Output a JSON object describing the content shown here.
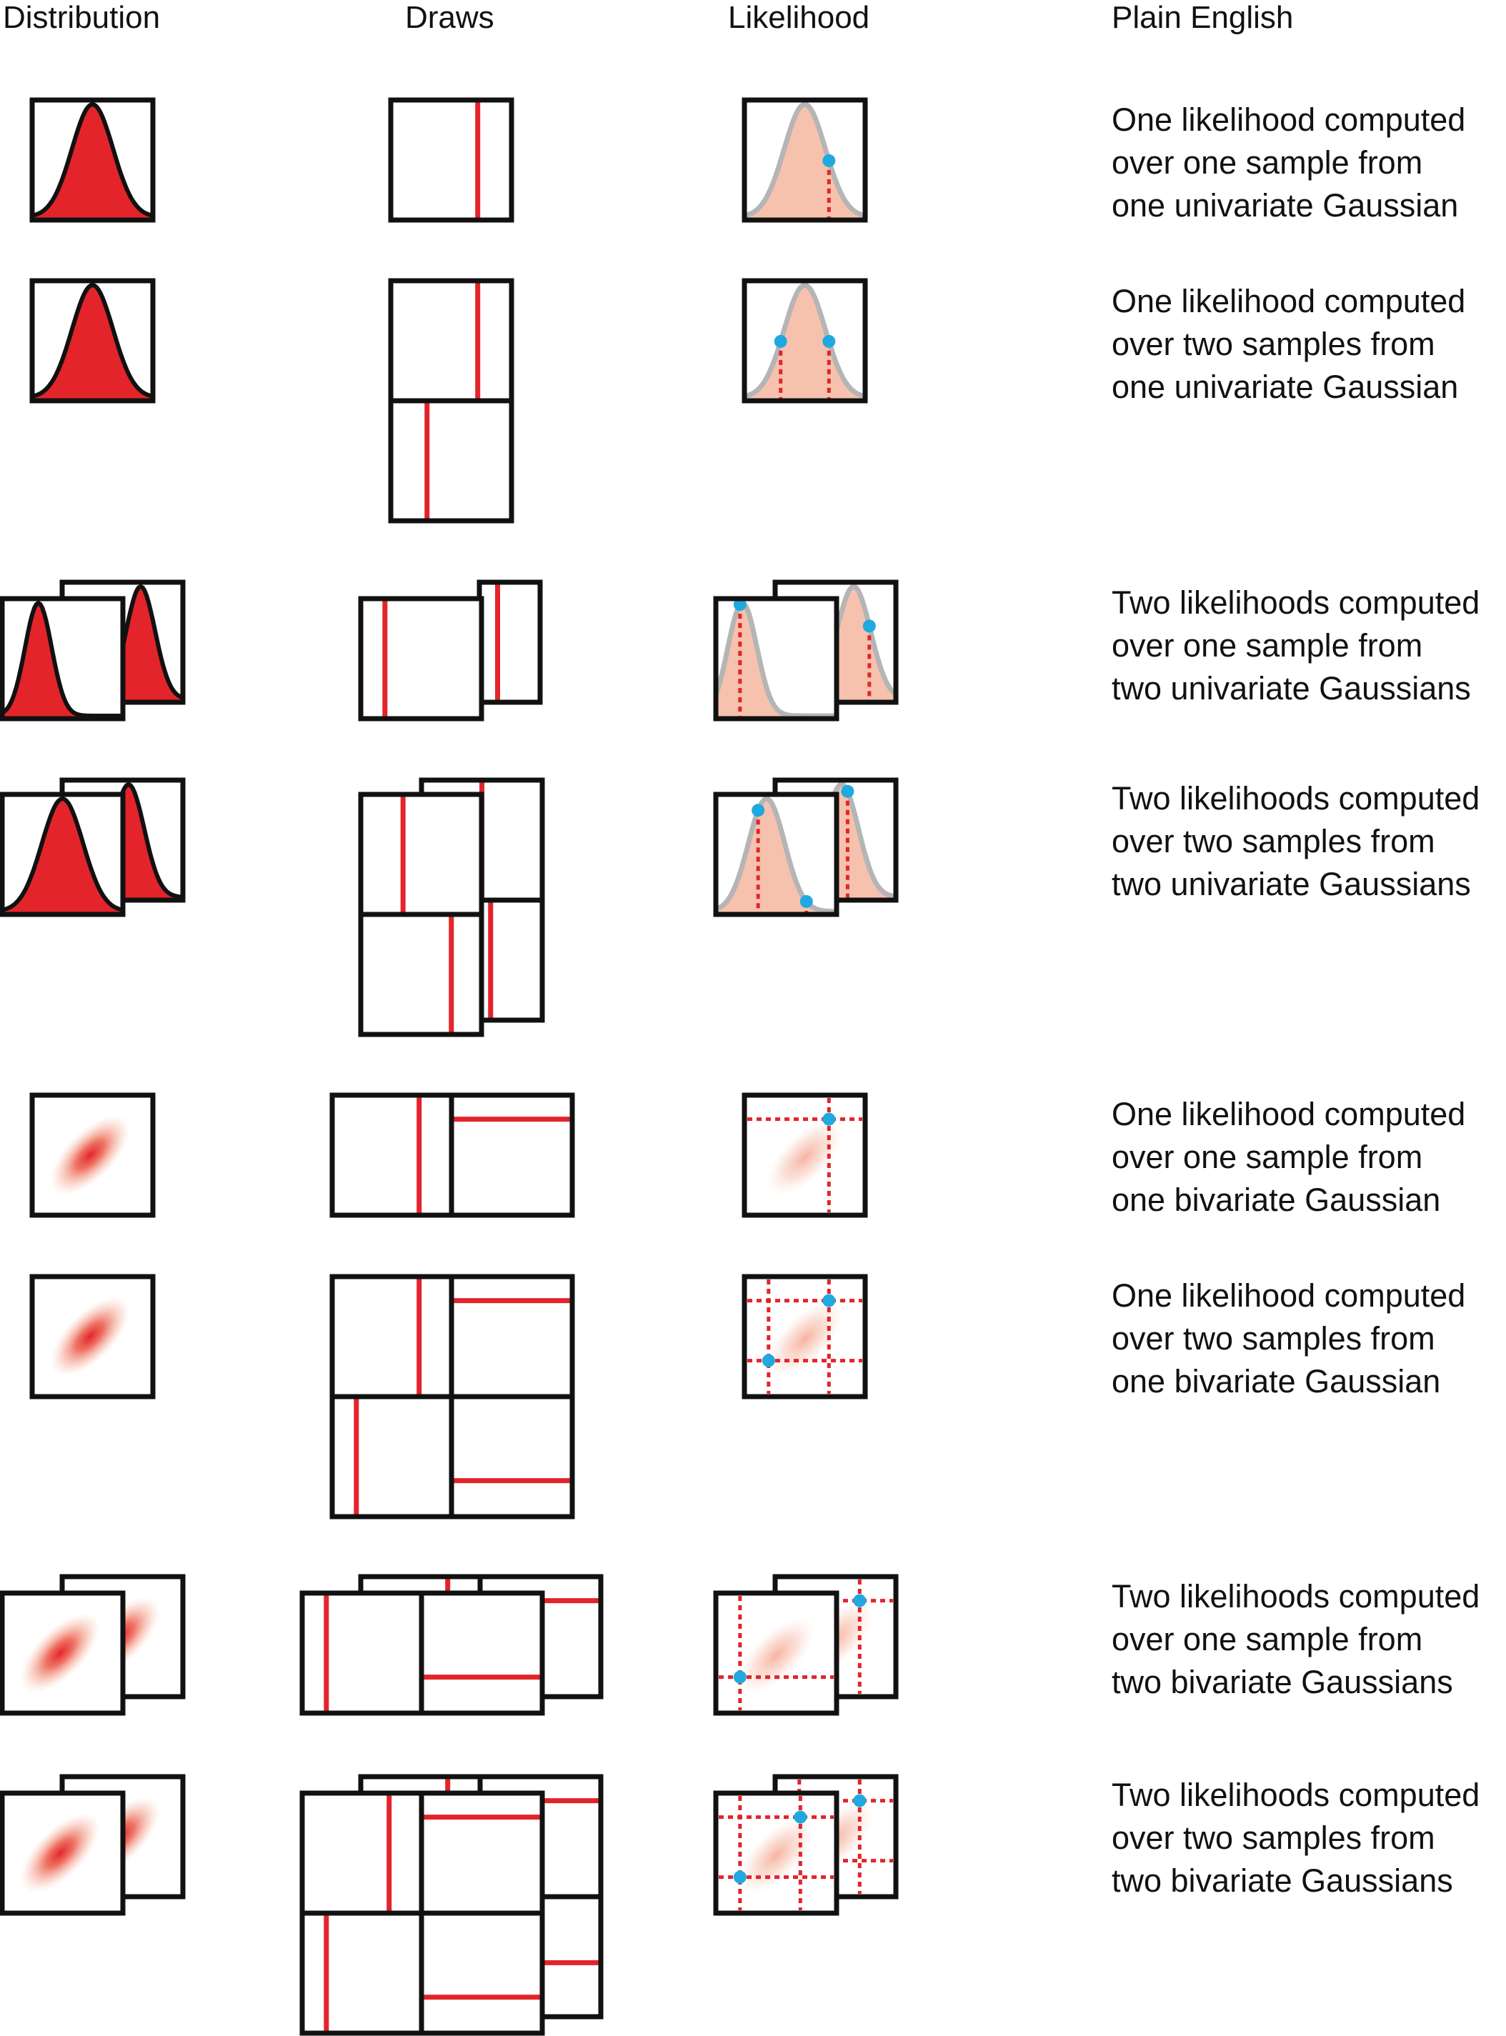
{
  "headers": [
    "Distribution",
    "Draws",
    "Likelihood",
    "Plain English"
  ],
  "rows": [
    {
      "lines": [
        "One likelihood computed",
        "over one sample from",
        "one univariate Gaussian"
      ]
    },
    {
      "lines": [
        "One likelihood computed",
        "over two samples from",
        "one univariate Gaussian"
      ]
    },
    {
      "lines": [
        "Two likelihoods computed",
        "over one sample from",
        "two univariate Gaussians"
      ]
    },
    {
      "lines": [
        "Two likelihoods computed",
        "over two samples from",
        "two univariate Gaussians"
      ]
    },
    {
      "lines": [
        "One likelihood computed",
        "over one sample from",
        "one bivariate Gaussian"
      ]
    },
    {
      "lines": [
        "One likelihood computed",
        "over two samples from",
        "one bivariate Gaussian"
      ]
    },
    {
      "lines": [
        "Two likelihoods computed",
        "over one sample from",
        "two bivariate Gaussians"
      ]
    },
    {
      "lines": [
        "Two likelihoods computed",
        "over two samples from",
        "two bivariate Gaussians"
      ]
    }
  ],
  "colors": {
    "frame": "#111111",
    "distribution_fill": "#e3242b",
    "draw_line": "#e3242b",
    "likelihood_fill": "#f6c2ad",
    "likelihood_curve": "#b5b5b5",
    "point": "#1fa9e1"
  }
}
